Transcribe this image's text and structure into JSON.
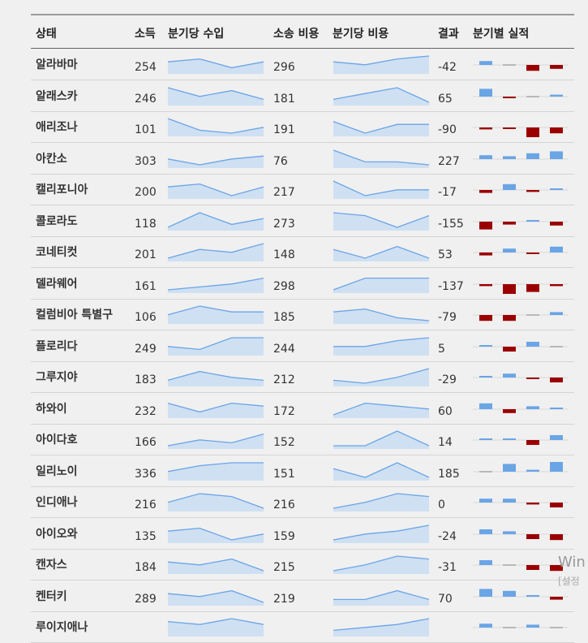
{
  "headers": {
    "state": "상태",
    "income": "소득",
    "income_q": "분기당 수입",
    "cost": "소송 비용",
    "cost_q": "분기당 비용",
    "result": "결과",
    "perf": "분기별 실적"
  },
  "colors": {
    "spark_line": "#6aa5e6",
    "spark_fill": "#cfe0f3",
    "bar_pos": "#6aa5e6",
    "bar_neg": "#9b0000",
    "bar_zero": "#b8b8b8"
  },
  "rows": [
    {
      "state": "알라바마",
      "income": "254",
      "cost": "296",
      "result": "-42",
      "inc": [
        3,
        4,
        1,
        3
      ],
      "cst": [
        3,
        2,
        4,
        5
      ],
      "perf": [
        2,
        0,
        -3,
        -2
      ]
    },
    {
      "state": "알래스카",
      "income": "246",
      "cost": "181",
      "result": "65",
      "inc": [
        5,
        2,
        4,
        1
      ],
      "cst": [
        1,
        3,
        5,
        0
      ],
      "perf": [
        4,
        -0.5,
        0,
        1
      ]
    },
    {
      "state": "애리조나",
      "income": "101",
      "cost": "191",
      "result": "-90",
      "inc": [
        5,
        1,
        0,
        2
      ],
      "cst": [
        4,
        0,
        3,
        3
      ],
      "perf": [
        -1,
        -0.3,
        -5,
        -3
      ]
    },
    {
      "state": "아칸소",
      "income": "303",
      "cost": "76",
      "result": "227",
      "inc": [
        2,
        0,
        2,
        3
      ],
      "cst": [
        5,
        1,
        1,
        0
      ],
      "perf": [
        2,
        1.5,
        3,
        4
      ]
    },
    {
      "state": "캘리포니아",
      "income": "200",
      "cost": "217",
      "result": "-17",
      "inc": [
        3,
        4,
        0,
        3
      ],
      "cst": [
        5,
        0,
        2,
        2
      ],
      "perf": [
        -1.5,
        3,
        -1,
        0.3
      ]
    },
    {
      "state": "콜로라도",
      "income": "118",
      "cost": "273",
      "result": "-155",
      "inc": [
        0,
        5,
        1,
        3
      ],
      "cst": [
        5,
        4,
        0,
        4
      ],
      "perf": [
        -4,
        -1.5,
        0.5,
        -2
      ]
    },
    {
      "state": "코네티컷",
      "income": "201",
      "cost": "148",
      "result": "53",
      "inc": [
        0,
        3,
        2,
        5
      ],
      "cst": [
        3,
        0,
        4,
        0
      ],
      "perf": [
        -1.5,
        2,
        -0.7,
        3
      ]
    },
    {
      "state": "델라웨어",
      "income": "161",
      "cost": "298",
      "result": "-137",
      "inc": [
        0,
        1,
        2,
        4
      ],
      "cst": [
        0,
        4,
        4,
        4
      ],
      "perf": [
        -1,
        -5,
        -4,
        -1
      ]
    },
    {
      "state": "컬럼비아 특별구",
      "income": "106",
      "cost": "185",
      "result": "-79",
      "inc": [
        2,
        5,
        3,
        3
      ],
      "cst": [
        3,
        4,
        1,
        0
      ],
      "perf": [
        -3,
        -3,
        0,
        1.5
      ]
    },
    {
      "state": "플로리다",
      "income": "249",
      "cost": "244",
      "result": "5",
      "inc": [
        2,
        1,
        5,
        5
      ],
      "cst": [
        2,
        2,
        4,
        5
      ],
      "perf": [
        0.5,
        -2.5,
        2.5,
        0
      ]
    },
    {
      "state": "그루지야",
      "income": "183",
      "cost": "212",
      "result": "-29",
      "inc": [
        1,
        4,
        2,
        1
      ],
      "cst": [
        1,
        0,
        2,
        5
      ],
      "perf": [
        0.3,
        2,
        -0.5,
        -2.5
      ]
    },
    {
      "state": "하와이",
      "income": "232",
      "cost": "172",
      "result": "60",
      "inc": [
        4,
        1,
        4,
        3
      ],
      "cst": [
        0,
        4,
        3,
        2
      ],
      "perf": [
        3,
        -2,
        1.5,
        0.3
      ]
    },
    {
      "state": "아이다호",
      "income": "166",
      "cost": "152",
      "result": "14",
      "inc": [
        0,
        2,
        1,
        4
      ],
      "cst": [
        0,
        0,
        5,
        0
      ],
      "perf": [
        0.3,
        0.6,
        -2.5,
        2.5
      ]
    },
    {
      "state": "일리노이",
      "income": "336",
      "cost": "151",
      "result": "185",
      "inc": [
        2,
        4,
        5,
        5
      ],
      "cst": [
        3,
        0,
        5,
        0
      ],
      "perf": [
        0,
        4,
        1,
        5
      ]
    },
    {
      "state": "인디애나",
      "income": "216",
      "cost": "216",
      "result": "0",
      "inc": [
        2,
        5,
        4,
        0
      ],
      "cst": [
        0,
        2,
        5,
        4
      ],
      "perf": [
        2,
        2,
        -1,
        -2.5
      ]
    },
    {
      "state": "아이오와",
      "income": "135",
      "cost": "159",
      "result": "-24",
      "inc": [
        3,
        4,
        0,
        2
      ],
      "cst": [
        0,
        2,
        3,
        5
      ],
      "perf": [
        2.5,
        1.5,
        -2.5,
        -3
      ]
    },
    {
      "state": "캔자스",
      "income": "184",
      "cost": "215",
      "result": "-31",
      "inc": [
        3,
        2,
        4,
        0
      ],
      "cst": [
        0,
        2,
        5,
        4
      ],
      "perf": [
        2.5,
        0,
        -2.5,
        -3
      ]
    },
    {
      "state": "켄터키",
      "income": "289",
      "cost": "219",
      "result": "70",
      "inc": [
        3,
        2,
        4,
        0
      ],
      "cst": [
        1,
        1,
        4,
        1
      ],
      "perf": [
        4,
        3,
        0.5,
        -1.5
      ]
    },
    {
      "state": "루이지애나",
      "income": "",
      "cost": "",
      "result": "",
      "inc": [
        4,
        3,
        5,
        3
      ],
      "cst": [
        1,
        2,
        3,
        5
      ],
      "perf": [
        2,
        0,
        1.5,
        0
      ]
    }
  ],
  "watermark": {
    "line1": "Win",
    "line2": "[설정"
  }
}
